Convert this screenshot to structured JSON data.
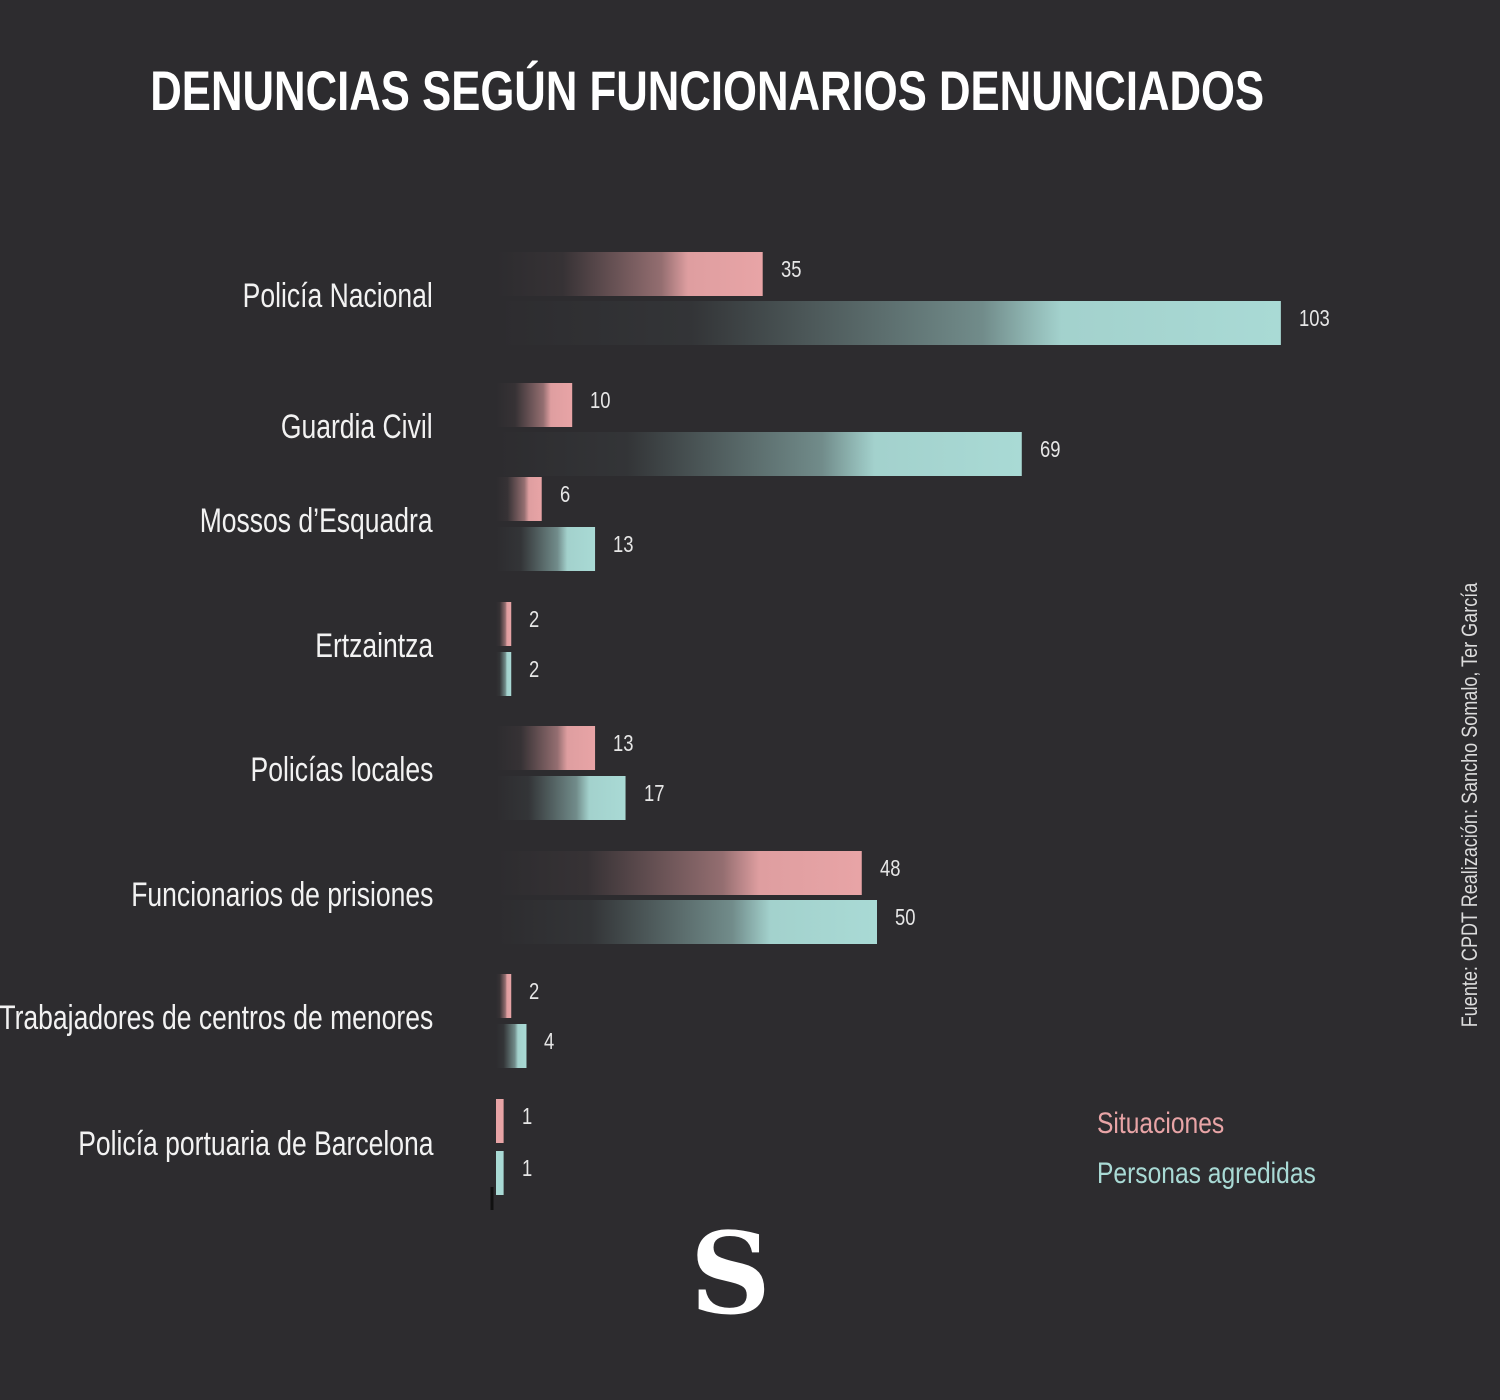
{
  "title": "DENUNCIAS SEGÚN FUNCIONARIOS DENUNCIADOS",
  "source": "Fuente: CPDT  Realización: Sancho Somalo, Ter García",
  "logo": "S",
  "colors": {
    "background": "#2d2c2f",
    "situaciones": "#e8a4a6",
    "personas": "#a9dad5"
  },
  "legend": {
    "situaciones": "Situaciones",
    "personas": "Personas agredidas"
  },
  "chart_data": {
    "type": "bar",
    "orientation": "horizontal",
    "title": "DENUNCIAS SEGÚN FUNCIONARIOS DENUNCIADOS",
    "categories": [
      "Policía Nacional",
      "Guardia Civil",
      "Mossos d’Esquadra",
      "Ertzaintza",
      "Policías locales",
      "Funcionarios de prisiones",
      "Trabajadores de centros de menores",
      "Policía portuaria de Barcelona"
    ],
    "series": [
      {
        "name": "Situaciones",
        "values": [
          35,
          10,
          6,
          2,
          13,
          48,
          2,
          1
        ]
      },
      {
        "name": "Personas agredidas",
        "values": [
          103,
          69,
          13,
          2,
          17,
          50,
          4,
          1
        ]
      }
    ],
    "legend_position": "bottom-right",
    "grid": false,
    "xlabel": "",
    "ylabel": ""
  }
}
